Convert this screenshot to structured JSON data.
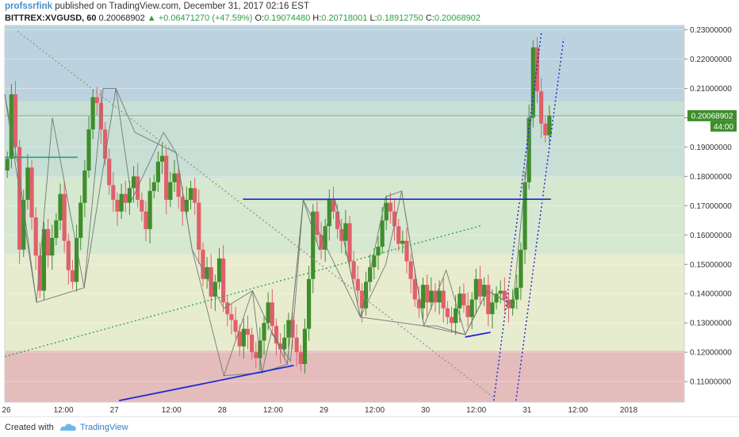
{
  "header": {
    "author": "profssrfink",
    "published": "published on TradingView.com, December 31, 2017 02:16 EST",
    "symbol": "BITTREX:XVGUSD, 60",
    "last": "0.20068902",
    "change": "▲ +0.06471270 (+47.59%)",
    "o_label": "O:",
    "o_value": "0.19074480",
    "h_label": "H:",
    "h_value": "0.20718001",
    "l_label": "L:",
    "l_value": "0.18912750",
    "c_label": "C:",
    "c_value": "0.20068902"
  },
  "price_badge": {
    "value": "0.20068902",
    "countdown": "44:00"
  },
  "footer": {
    "created": "Created with",
    "brand": "TradingView"
  },
  "colors": {
    "up": "#3e8e2c",
    "down": "#e0606a",
    "blue_line": "#1a2bd6",
    "zone_top": "#bcd3df",
    "zone_mid_top": "#c8dfd5",
    "zone_mid": "#d6e8cf",
    "zone_low": "#e8eccf",
    "zone_red": "#e4bcbc",
    "teal": "#2a9e8a"
  },
  "chart_data": {
    "type": "candlestick",
    "y_ticks": [
      "0.23000000",
      "0.22000000",
      "0.21000000",
      "0.20000000",
      "0.19000000",
      "0.18000000",
      "0.17000000",
      "0.16000000",
      "0.15000000",
      "0.14000000",
      "0.13000000",
      "0.12000000",
      "0.11000000"
    ],
    "y_tick_values": [
      0.23,
      0.22,
      0.21,
      0.2,
      0.19,
      0.18,
      0.17,
      0.16,
      0.15,
      0.14,
      0.13,
      0.12,
      0.11
    ],
    "ylim": [
      0.103,
      0.2315
    ],
    "xlim": [
      0,
      107
    ],
    "x_ticks": [
      {
        "label": "26",
        "x": 0
      },
      {
        "label": "12:00",
        "x": 9
      },
      {
        "label": "27",
        "x": 17
      },
      {
        "label": "12:00",
        "x": 26
      },
      {
        "label": "28",
        "x": 34
      },
      {
        "label": "12:00",
        "x": 42
      },
      {
        "label": "29",
        "x": 50
      },
      {
        "label": "12:00",
        "x": 58
      },
      {
        "label": "30",
        "x": 66
      },
      {
        "label": "12:00",
        "x": 74
      },
      {
        "label": "31",
        "x": 82
      },
      {
        "label": "12:00",
        "x": 90
      },
      {
        "label": "2018",
        "x": 98
      }
    ],
    "zones": [
      {
        "from": 0.2055,
        "to": 0.2315,
        "color": "#bcd3df"
      },
      {
        "from": 0.1795,
        "to": 0.2055,
        "color": "#c8dfd5"
      },
      {
        "from": 0.1535,
        "to": 0.1795,
        "color": "#d6e8cf"
      },
      {
        "from": 0.1205,
        "to": 0.1535,
        "color": "#e8eccf"
      },
      {
        "from": 0.103,
        "to": 0.1205,
        "color": "#e4bcbc"
      }
    ],
    "closes": [
      0.186,
      0.208,
      0.19,
      0.155,
      0.172,
      0.183,
      0.166,
      0.153,
      0.141,
      0.162,
      0.153,
      0.159,
      0.165,
      0.174,
      0.158,
      0.148,
      0.144,
      0.159,
      0.171,
      0.182,
      0.196,
      0.207,
      0.205,
      0.196,
      0.186,
      0.177,
      0.172,
      0.168,
      0.174,
      0.171,
      0.176,
      0.18,
      0.172,
      0.168,
      0.162,
      0.175,
      0.178,
      0.185,
      0.187,
      0.172,
      0.178,
      0.181,
      0.173,
      0.168,
      0.172,
      0.176,
      0.171,
      0.155,
      0.145,
      0.149,
      0.139,
      0.144,
      0.152,
      0.137,
      0.133,
      0.131,
      0.127,
      0.122,
      0.128,
      0.126,
      0.12,
      0.118,
      0.124,
      0.13,
      0.137,
      0.129,
      0.123,
      0.121,
      0.125,
      0.131,
      0.125,
      0.12,
      0.116,
      0.128,
      0.145,
      0.168,
      0.16,
      0.155,
      0.163,
      0.172,
      0.168,
      0.162,
      0.158,
      0.164,
      0.151,
      0.145,
      0.141,
      0.135,
      0.144,
      0.149,
      0.153,
      0.156,
      0.165,
      0.171,
      0.168,
      0.163,
      0.157,
      0.158,
      0.151,
      0.145,
      0.138,
      0.135,
      0.143,
      0.137,
      0.141,
      0.137,
      0.141,
      0.135,
      0.132,
      0.13,
      0.135,
      0.14,
      0.136,
      0.132,
      0.138,
      0.145,
      0.139,
      0.143,
      0.133,
      0.137,
      0.14,
      0.141,
      0.138,
      0.135,
      0.138,
      0.142,
      0.155,
      0.178,
      0.2,
      0.224,
      0.209,
      0.198,
      0.194,
      0.2007
    ],
    "horizontal_lines": [
      {
        "price": 0.1722,
        "x_from": 37.5,
        "x_to": 86,
        "color": "#1a2bd6",
        "style": "solid"
      },
      {
        "price": 0.1865,
        "x_from": 0,
        "x_to": 11.5,
        "color": "#2a9e8a",
        "style": "solid"
      }
    ],
    "trend_lines": [
      {
        "x1": 18,
        "y1": 0.1035,
        "x2": 45.5,
        "y2": 0.1155,
        "color": "#1a2bd6",
        "style": "solid"
      },
      {
        "x1": 72.5,
        "y1": 0.1252,
        "x2": 76.5,
        "y2": 0.1268,
        "color": "#1a2bd6",
        "style": "solid"
      },
      {
        "x1": 0,
        "y1": 0.1185,
        "x2": 75,
        "y2": 0.1632,
        "color": "#3aa85a",
        "style": "dotted"
      },
      {
        "x1": 2,
        "y1": 0.2295,
        "x2": 77,
        "y2": 0.1045,
        "color": "#999999",
        "style": "dotted"
      },
      {
        "x1": 77,
        "y1": 0.1035,
        "x2": 84.5,
        "y2": 0.229,
        "color": "#1a2bd6",
        "style": "dotted"
      },
      {
        "x1": 80.5,
        "y1": 0.1035,
        "x2": 88,
        "y2": 0.227,
        "color": "#1a2bd6",
        "style": "dotted"
      }
    ],
    "pattern_lines": [
      [
        [
          0,
          0.208
        ],
        [
          5,
          0.137
        ],
        [
          7.5,
          0.2
        ],
        [
          12.5,
          0.142
        ],
        [
          15.5,
          0.21
        ],
        [
          17.5,
          0.21
        ],
        [
          20.5,
          0.195
        ],
        [
          27,
          0.188
        ],
        [
          29.5,
          0.155
        ],
        [
          34.5,
          0.112
        ],
        [
          39,
          0.141
        ],
        [
          40.5,
          0.113
        ],
        [
          42,
          0.127
        ],
        [
          44.5,
          0.116
        ],
        [
          47,
          0.172
        ],
        [
          52,
          0.172
        ],
        [
          56,
          0.132
        ],
        [
          60,
          0.173
        ],
        [
          62.5,
          0.175
        ],
        [
          66,
          0.129
        ],
        [
          68,
          0.129
        ],
        [
          72.5,
          0.126
        ],
        [
          76,
          0.141
        ],
        [
          80,
          0.136
        ],
        [
          84,
          0.224
        ]
      ],
      [
        [
          0,
          0.208
        ],
        [
          2,
          0.185
        ],
        [
          5,
          0.137
        ],
        [
          12.5,
          0.142
        ],
        [
          17.5,
          0.21
        ],
        [
          20,
          0.172
        ],
        [
          25,
          0.195
        ],
        [
          27,
          0.188
        ],
        [
          29.5,
          0.155
        ],
        [
          34.5,
          0.135
        ],
        [
          39,
          0.141
        ],
        [
          42,
          0.127
        ],
        [
          45,
          0.117
        ],
        [
          47,
          0.172
        ],
        [
          49.5,
          0.155
        ],
        [
          52,
          0.172
        ],
        [
          56,
          0.132
        ],
        [
          60,
          0.15
        ],
        [
          62.5,
          0.175
        ],
        [
          66,
          0.129
        ],
        [
          69.5,
          0.148
        ],
        [
          72.5,
          0.126
        ],
        [
          76,
          0.141
        ],
        [
          80,
          0.136
        ]
      ],
      [
        [
          34.5,
          0.112
        ],
        [
          40.5,
          0.113
        ],
        [
          44.5,
          0.116
        ],
        [
          47,
          0.172
        ],
        [
          56,
          0.132
        ],
        [
          66,
          0.129
        ],
        [
          72.5,
          0.126
        ],
        [
          76,
          0.141
        ],
        [
          80,
          0.136
        ]
      ]
    ]
  }
}
